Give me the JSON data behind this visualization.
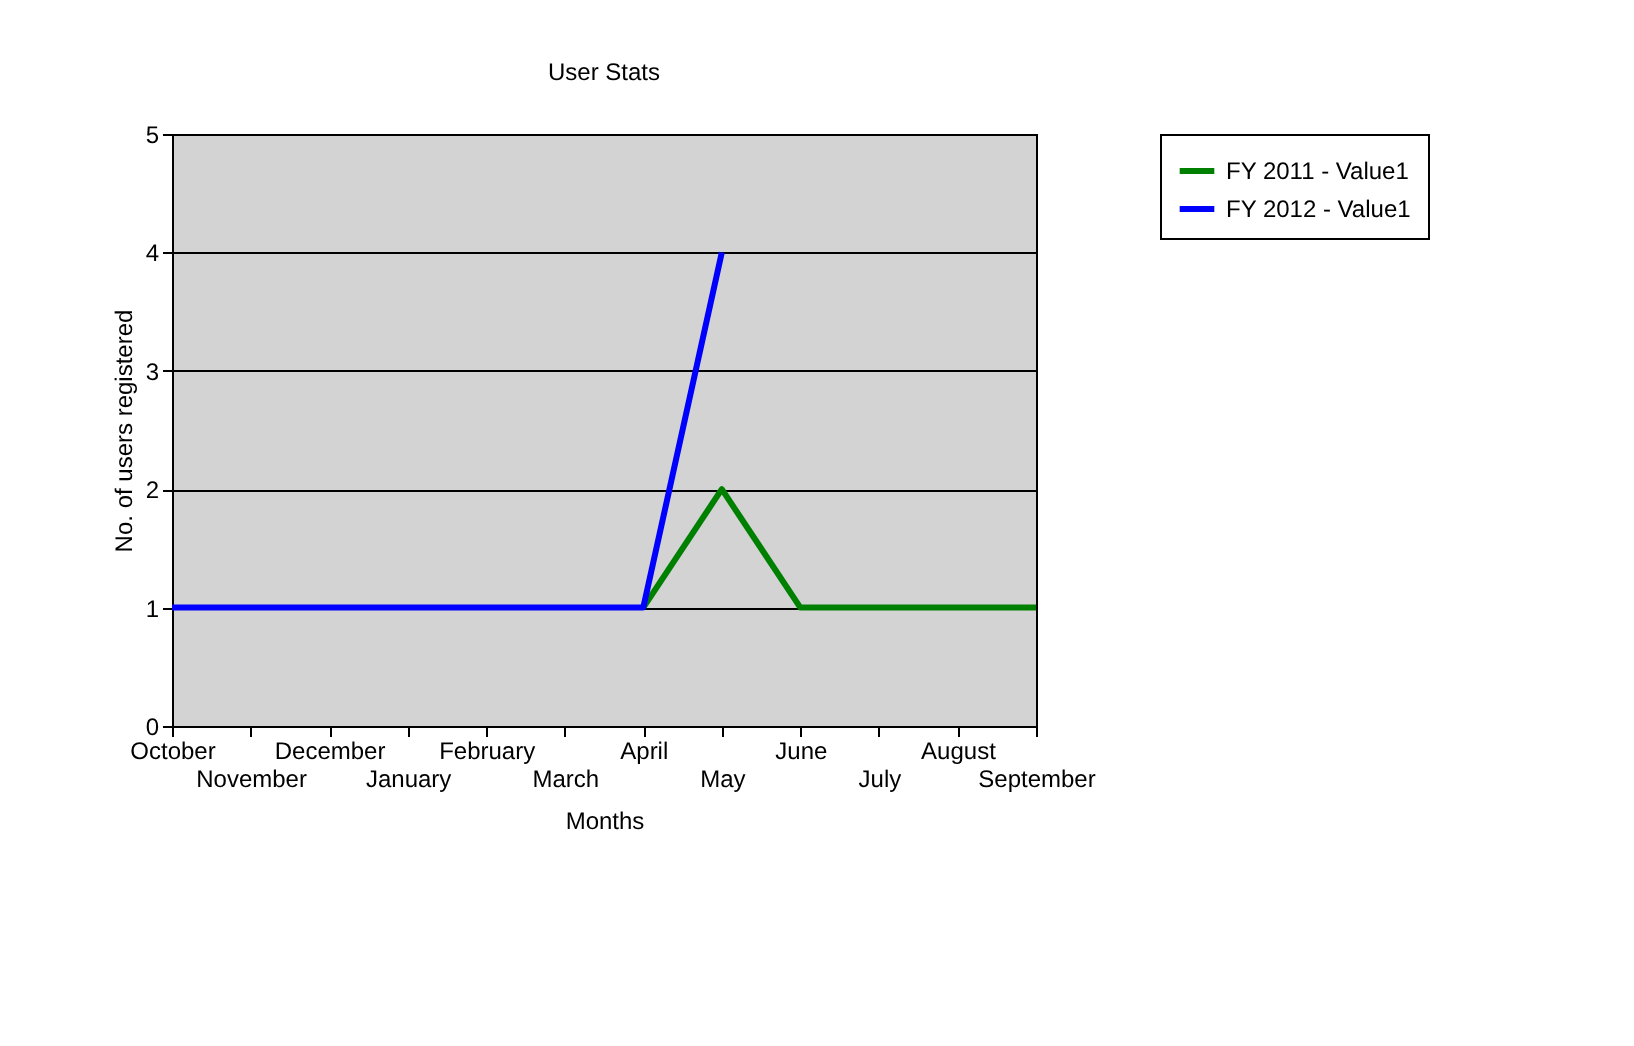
{
  "chart_data": {
    "type": "line",
    "title": "User Stats",
    "xlabel": "Months",
    "ylabel": "No. of users registered",
    "categories": [
      "October",
      "November",
      "December",
      "January",
      "February",
      "March",
      "April",
      "May",
      "June",
      "July",
      "August",
      "September"
    ],
    "series": [
      {
        "name": "FY 2011 - Value1",
        "color": "#008000",
        "values": [
          null,
          null,
          null,
          null,
          null,
          null,
          1,
          2,
          1,
          1,
          1,
          1
        ]
      },
      {
        "name": "FY 2012 - Value1",
        "color": "#0000ff",
        "values": [
          1,
          1,
          1,
          1,
          1,
          1,
          1,
          4,
          null,
          null,
          null,
          null
        ]
      }
    ],
    "ylim": [
      0,
      5
    ],
    "yticks": [
      0,
      1,
      2,
      3,
      4,
      5
    ],
    "grid": "y",
    "legend": "right",
    "marker": "none",
    "line_style": "solid"
  }
}
